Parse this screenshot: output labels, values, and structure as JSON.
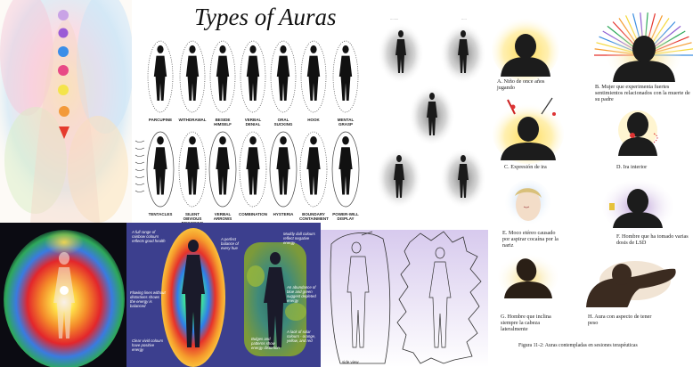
{
  "collage": {
    "types_title": "Types of Auras",
    "types_row1": [
      "PARCUPINE",
      "WITHDRAWAL",
      "BESIDE HIMSELF",
      "VERBAL DENIAL",
      "ORAL SUCKING",
      "HOOK",
      "MENTAL GRASP"
    ],
    "types_row2": [
      "TENTACLES",
      "SILENT OBVIOUS BROODING",
      "VERBAL ARROWS",
      "COMBINATION",
      "HYSTERIA",
      "BOUNDARY CONTAINMENT",
      "POWER-WILL DISPLAY"
    ],
    "gradient_notes": [
      "A full range of rainbow colours reflects good health",
      "A perfect balance of every hue",
      "Muddy dull colours reflect negative energy",
      "Flowing lines without distortions shows the energy is balanced",
      "An abundance of blue and green suggest depleted energy",
      "Clear vivid colours have positive energy",
      "Bulges and patterns show energy distortion",
      "A lack of solar colours - orange, yellow, and red"
    ],
    "outline_caption": "side view",
    "spanish_captions": [
      "A.  Niño de once años jugando",
      "B.  Mujer que experimenta fuertes sentimientos relacionados con la muerte de su padre",
      "C.  Expresión de ira",
      "D.  Ira interior",
      "E.  Moco etéreo causado por aspirar cocaína por la nariz",
      "F.  Hombre que ha tomado varias dosis de LSD",
      "G.  Hombre que inclina siempre la cabeza lateralmente",
      "H.  Aura con aspecto de tener peso"
    ],
    "figure_caption": "Figura 11-2:   Auras contempladas en sesiones terapéuticas"
  }
}
